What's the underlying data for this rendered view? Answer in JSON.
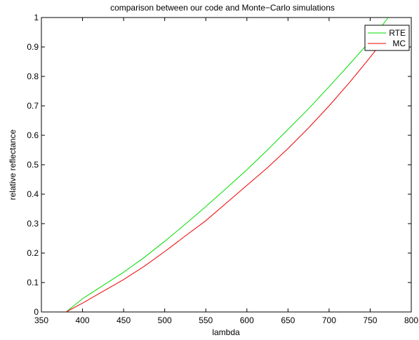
{
  "chart_data": {
    "type": "line",
    "title": "comparison between our code and Monte−Carlo simulations",
    "xlabel": "lambda",
    "ylabel": "relative reflectance",
    "xlim": [
      350,
      800
    ],
    "ylim": [
      0,
      1
    ],
    "xticks": [
      "350",
      "400",
      "450",
      "500",
      "550",
      "600",
      "650",
      "700",
      "750",
      "800"
    ],
    "yticks": [
      "0",
      "0.1",
      "0.2",
      "0.3",
      "0.4",
      "0.5",
      "0.6",
      "0.7",
      "0.8",
      "0.9",
      "1"
    ],
    "grid": false,
    "legend_position": "top-right",
    "series": [
      {
        "name": "RTE",
        "color": "#00dd00",
        "x": [
          380,
          400,
          425,
          450,
          475,
          500,
          525,
          550,
          575,
          600,
          625,
          650,
          675,
          700,
          725,
          750,
          772
        ],
        "y": [
          0,
          0.045,
          0.09,
          0.135,
          0.185,
          0.24,
          0.298,
          0.358,
          0.42,
          0.483,
          0.55,
          0.62,
          0.69,
          0.765,
          0.842,
          0.92,
          1.0
        ]
      },
      {
        "name": "MC",
        "color": "#ee0000",
        "x": [
          380,
          400,
          425,
          450,
          475,
          500,
          525,
          550,
          575,
          600,
          625,
          650,
          675,
          700,
          725,
          750,
          775
        ],
        "y": [
          0,
          0.03,
          0.07,
          0.11,
          0.155,
          0.205,
          0.258,
          0.31,
          0.37,
          0.43,
          0.49,
          0.555,
          0.625,
          0.7,
          0.78,
          0.865,
          0.955
        ]
      }
    ]
  }
}
